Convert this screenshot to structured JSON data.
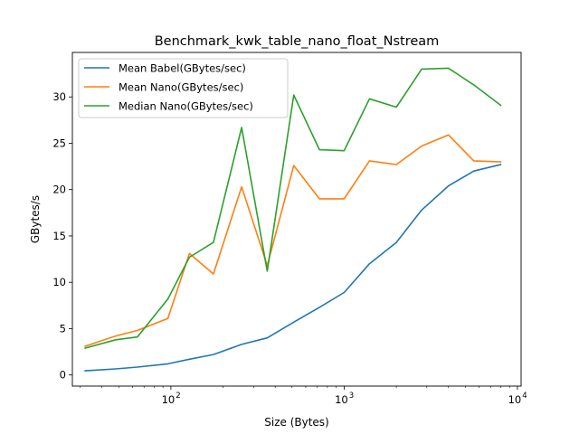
{
  "chart_data": {
    "type": "line",
    "title": "Benchmark_kwk_table_nano_float_Nstream",
    "xlabel": "Size (Bytes)",
    "ylabel": "GBytes/s",
    "xscale": "log",
    "xlim": [
      27,
      10500
    ],
    "ylim": [
      -1.2,
      34.8
    ],
    "xticks": [
      {
        "value": 100,
        "base": "10",
        "exp": "2"
      },
      {
        "value": 1000,
        "base": "10",
        "exp": "3"
      },
      {
        "value": 10000,
        "base": "10",
        "exp": "4"
      }
    ],
    "yticks": [
      0,
      5,
      10,
      15,
      20,
      25,
      30
    ],
    "grid": false,
    "legend_position": "top-left",
    "x": [
      32,
      48,
      64,
      96,
      128,
      176,
      256,
      360,
      512,
      720,
      1000,
      1400,
      2000,
      2800,
      4000,
      5600,
      8000
    ],
    "series": [
      {
        "name": "Mean Babel(GBytes/sec)",
        "color": "#1f77b4",
        "values": [
          0.45,
          0.65,
          0.85,
          1.2,
          1.7,
          2.2,
          3.3,
          4.0,
          5.7,
          7.3,
          8.9,
          12.0,
          14.3,
          17.8,
          20.4,
          22.0,
          22.7
        ]
      },
      {
        "name": "Mean Nano(GBytes/sec)",
        "color": "#ff7f0e",
        "values": [
          3.1,
          4.2,
          4.8,
          6.1,
          13.1,
          10.9,
          20.3,
          11.8,
          22.6,
          19.0,
          19.0,
          23.1,
          22.7,
          24.7,
          25.9,
          23.1,
          23.0
        ]
      },
      {
        "name": "Median Nano(GBytes/sec)",
        "color": "#2ca02c",
        "values": [
          2.9,
          3.8,
          4.1,
          8.2,
          12.7,
          14.3,
          26.7,
          11.2,
          30.2,
          24.3,
          24.2,
          29.8,
          28.9,
          33.0,
          33.1,
          31.3,
          29.1
        ]
      }
    ]
  }
}
